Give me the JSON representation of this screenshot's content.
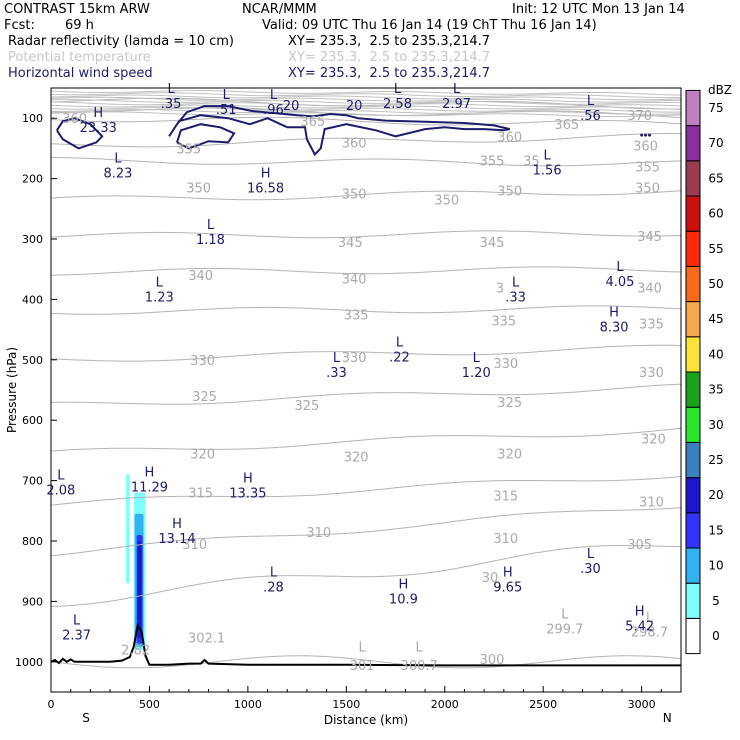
{
  "header": {
    "title_left": "CONTRAST 15km ARW",
    "title_center": "NCAR/MMM",
    "init": "Init: 12 UTC Mon 13 Jan 14",
    "fcst_label": "Fcst:",
    "fcst_value": "69 h",
    "valid": "Valid: 09 UTC Thu 16 Jan 14 (19 ChT Thu 16 Jan 14)",
    "fields": [
      {
        "name": "Radar reflectivity (lamda = 10 cm)",
        "xy": "XY= 235.3,  2.5 to 235.3,214.7"
      },
      {
        "name": "Potential temperature",
        "xy": "XY= 235.3,  2.5 to 235.3,214.7"
      },
      {
        "name": "Horizontal wind speed",
        "xy": "XY= 235.3,  2.5 to 235.3,214.7"
      }
    ]
  },
  "colors": {
    "theta": "#b4b4b4",
    "wind": "#1c1c6e",
    "terrain": "#000000"
  },
  "chart_data": {
    "type": "cross-section",
    "xlabel": "Distance (km)",
    "ylabel": "Pressure (hPa)",
    "xlim": [
      0,
      3200
    ],
    "ylim": [
      1050,
      50
    ],
    "x_ticks": [
      0,
      500,
      1000,
      1500,
      2000,
      2500,
      3000
    ],
    "y_ticks": [
      100,
      200,
      300,
      400,
      500,
      600,
      700,
      800,
      900,
      1000
    ],
    "x_end_labels": {
      "left": "S",
      "right": "N"
    },
    "colorbar": {
      "unit": "dBZ",
      "levels": [
        0,
        5,
        10,
        15,
        20,
        25,
        30,
        35,
        40,
        45,
        50,
        55,
        60,
        65,
        70,
        75
      ],
      "colors": [
        "#ffffff",
        "#7fffff",
        "#33b2f2",
        "#3333ff",
        "#1a1acc",
        "#3b80bf",
        "#29e629",
        "#1aa31a",
        "#fbe339",
        "#f4a94c",
        "#fa6a1a",
        "#ff2a0a",
        "#cc0f0f",
        "#9b3c4f",
        "#8a2fa0",
        "#c080c0"
      ]
    },
    "reflectivity_cells": [
      {
        "x0": 380,
        "x1": 400,
        "p_top": 690,
        "p_bot": 870,
        "dbz": 5
      },
      {
        "x0": 420,
        "x1": 480,
        "p_top": 720,
        "p_bot": 980,
        "dbz": 5
      },
      {
        "x0": 425,
        "x1": 470,
        "p_top": 755,
        "p_bot": 975,
        "dbz": 10
      },
      {
        "x0": 435,
        "x1": 465,
        "p_top": 790,
        "p_bot": 970,
        "dbz": 15
      },
      {
        "x0": 440,
        "x1": 460,
        "p_top": 800,
        "p_bot": 960,
        "dbz": 20
      }
    ],
    "theta_levels": [
      {
        "value": 300,
        "p_left": 1000,
        "p_right": 1000
      },
      {
        "value": 305,
        "p_left": 900,
        "p_right": 805
      },
      {
        "value": 310,
        "p_left": 820,
        "p_right": 740
      },
      {
        "value": 315,
        "p_left": 740,
        "p_right": 690
      },
      {
        "value": 320,
        "p_left": 655,
        "p_right": 615
      },
      {
        "value": 325,
        "p_left": 575,
        "p_right": 545
      },
      {
        "value": 330,
        "p_left": 500,
        "p_right": 480
      },
      {
        "value": 335,
        "p_left": 420,
        "p_right": 415
      },
      {
        "value": 340,
        "p_left": 355,
        "p_right": 350
      },
      {
        "value": 345,
        "p_left": 295,
        "p_right": 290
      },
      {
        "value": 350,
        "p_left": 235,
        "p_right": 220
      },
      {
        "value": 355,
        "p_left": 170,
        "p_right": 175
      },
      {
        "value": 360,
        "p_left": 145,
        "p_right": 130
      },
      {
        "value": 365,
        "p_left": 100,
        "p_right": 110
      },
      {
        "value": 370,
        "p_left": 85,
        "p_right": 95
      },
      {
        "value": 375,
        "p_left": 70,
        "p_right": 80
      }
    ],
    "theta_labels": [
      {
        "text": "360",
        "x": 120,
        "p": 100
      },
      {
        "text": "355",
        "x": 700,
        "p": 150
      },
      {
        "text": "365",
        "x": 1330,
        "p": 105
      },
      {
        "text": "360",
        "x": 1540,
        "p": 140
      },
      {
        "text": "360",
        "x": 2330,
        "p": 130
      },
      {
        "text": "365",
        "x": 2620,
        "p": 110
      },
      {
        "text": "370",
        "x": 2990,
        "p": 95
      },
      {
        "text": "360",
        "x": 3020,
        "p": 145
      },
      {
        "text": "355",
        "x": 2240,
        "p": 170
      },
      {
        "text": "35",
        "x": 2440,
        "p": 170
      },
      {
        "text": "355",
        "x": 3030,
        "p": 180
      },
      {
        "text": "350",
        "x": 750,
        "p": 215
      },
      {
        "text": "350",
        "x": 1540,
        "p": 225
      },
      {
        "text": "350",
        "x": 2010,
        "p": 235
      },
      {
        "text": "350",
        "x": 2330,
        "p": 220
      },
      {
        "text": "350",
        "x": 3030,
        "p": 215
      },
      {
        "text": "345",
        "x": 1520,
        "p": 305
      },
      {
        "text": "345",
        "x": 2240,
        "p": 305
      },
      {
        "text": "345",
        "x": 3040,
        "p": 295
      },
      {
        "text": "340",
        "x": 760,
        "p": 360
      },
      {
        "text": "340",
        "x": 1540,
        "p": 365
      },
      {
        "text": "3",
        "x": 2280,
        "p": 380
      },
      {
        "text": "340",
        "x": 3040,
        "p": 380
      },
      {
        "text": "335",
        "x": 1550,
        "p": 425
      },
      {
        "text": "335",
        "x": 2300,
        "p": 435
      },
      {
        "text": "335",
        "x": 3050,
        "p": 440
      },
      {
        "text": "330",
        "x": 770,
        "p": 500
      },
      {
        "text": "330",
        "x": 1540,
        "p": 495
      },
      {
        "text": "330",
        "x": 2310,
        "p": 505
      },
      {
        "text": "330",
        "x": 3050,
        "p": 520
      },
      {
        "text": "325",
        "x": 780,
        "p": 560
      },
      {
        "text": "325",
        "x": 1300,
        "p": 575
      },
      {
        "text": "325",
        "x": 2330,
        "p": 570
      },
      {
        "text": "320",
        "x": 770,
        "p": 655
      },
      {
        "text": "320",
        "x": 1550,
        "p": 660
      },
      {
        "text": "320",
        "x": 2330,
        "p": 655
      },
      {
        "text": "320",
        "x": 3060,
        "p": 630
      },
      {
        "text": "315",
        "x": 760,
        "p": 720
      },
      {
        "text": "315",
        "x": 2310,
        "p": 725
      },
      {
        "text": "310",
        "x": 1360,
        "p": 785
      },
      {
        "text": "310",
        "x": 730,
        "p": 805
      },
      {
        "text": "310",
        "x": 2310,
        "p": 795
      },
      {
        "text": "310",
        "x": 3050,
        "p": 735
      },
      {
        "text": "305",
        "x": 2990,
        "p": 805
      },
      {
        "text": "30",
        "x": 2230,
        "p": 860
      },
      {
        "text": "302.1",
        "x": 790,
        "p": 960
      },
      {
        "text": "299.7",
        "x": 2610,
        "p": 945
      },
      {
        "text": "298.7",
        "x": 3040,
        "p": 950
      },
      {
        "text": "301",
        "x": 1580,
        "p": 1005
      },
      {
        "text": "300.7",
        "x": 1870,
        "p": 1005
      },
      {
        "text": "300",
        "x": 2240,
        "p": 995
      },
      {
        "text": "L",
        "x": 1580,
        "p": 975
      },
      {
        "text": "L",
        "x": 1870,
        "p": 975
      },
      {
        "text": "L",
        "x": 2610,
        "p": 920
      },
      {
        "text": "L",
        "x": 3040,
        "p": 925
      },
      {
        "text": "2.82",
        "x": 430,
        "p": 980
      }
    ],
    "wind_labels": [
      {
        "mark": "L",
        "value": ".35",
        "x": 610,
        "p": 65
      },
      {
        "mark": "L",
        "value": ".51",
        "x": 890,
        "p": 75
      },
      {
        "mark": "L",
        "value": ".96",
        "x": 1130,
        "p": 75
      },
      {
        "mark": "L",
        "value": "2.58",
        "x": 1760,
        "p": 65
      },
      {
        "mark": "L",
        "value": "2.97",
        "x": 2060,
        "p": 65
      },
      {
        "mark": "L",
        "value": ".56",
        "x": 2740,
        "p": 85
      },
      {
        "mark": "H",
        "value": "23.33",
        "x": 240,
        "p": 105
      },
      {
        "mark": "L",
        "value": "8.23",
        "x": 340,
        "p": 180
      },
      {
        "mark": "H",
        "value": "16.58",
        "x": 1090,
        "p": 205
      },
      {
        "mark": "L",
        "value": "1.56",
        "x": 2520,
        "p": 175
      },
      {
        "mark": "L",
        "value": "1.18",
        "x": 810,
        "p": 290
      },
      {
        "mark": "L",
        "value": "1.23",
        "x": 550,
        "p": 385
      },
      {
        "mark": "L",
        "value": ".33",
        "x": 2360,
        "p": 385
      },
      {
        "mark": "L",
        "value": "4.05",
        "x": 2890,
        "p": 360
      },
      {
        "mark": "H",
        "value": "8.30",
        "x": 2860,
        "p": 435
      },
      {
        "mark": "L",
        "value": ".22",
        "x": 1770,
        "p": 485
      },
      {
        "mark": "L",
        "value": ".33",
        "x": 1450,
        "p": 510
      },
      {
        "mark": "L",
        "value": "1.20",
        "x": 2160,
        "p": 510
      },
      {
        "mark": "L",
        "value": "2.08",
        "x": 50,
        "p": 705
      },
      {
        "mark": "H",
        "value": "11.29",
        "x": 500,
        "p": 700
      },
      {
        "mark": "H",
        "value": "13.35",
        "x": 1000,
        "p": 710
      },
      {
        "mark": "H",
        "value": "13.14",
        "x": 640,
        "p": 785
      },
      {
        "mark": "L",
        "value": ".28",
        "x": 1130,
        "p": 865
      },
      {
        "mark": "H",
        "value": "10.9",
        "x": 1790,
        "p": 885
      },
      {
        "mark": "H",
        "value": "9.65",
        "x": 2320,
        "p": 865
      },
      {
        "mark": "L",
        "value": ".30",
        "x": 2740,
        "p": 835
      },
      {
        "mark": "L",
        "value": "2.37",
        "x": 130,
        "p": 945
      },
      {
        "mark": "H",
        "value": "5.42",
        "x": 2990,
        "p": 930
      }
    ],
    "wind_contour_20": {
      "label": "20",
      "polylines": [
        [
          [
            30,
            120
          ],
          [
            60,
            105
          ],
          [
            120,
            100
          ],
          [
            200,
            110
          ],
          [
            260,
            130
          ],
          [
            230,
            140
          ],
          [
            140,
            150
          ],
          [
            60,
            135
          ],
          [
            30,
            120
          ]
        ],
        [
          [
            600,
            130
          ],
          [
            650,
            105
          ],
          [
            760,
            95
          ],
          [
            900,
            100
          ],
          [
            1010,
            110
          ],
          [
            1100,
            100
          ],
          [
            1200,
            115
          ],
          [
            1290,
            115
          ],
          [
            1300,
            135
          ],
          [
            1340,
            160
          ],
          [
            1370,
            150
          ],
          [
            1390,
            118
          ],
          [
            1500,
            110
          ],
          [
            1650,
            120
          ],
          [
            1750,
            130
          ],
          [
            1900,
            118
          ],
          [
            2000,
            115
          ],
          [
            2100,
            118
          ],
          [
            2200,
            118
          ],
          [
            2300,
            120
          ],
          [
            2330,
            118
          ],
          [
            2250,
            112
          ],
          [
            2100,
            108
          ],
          [
            1900,
            106
          ],
          [
            1700,
            104
          ],
          [
            1560,
            100
          ],
          [
            1500,
            95
          ],
          [
            1420,
            93
          ],
          [
            1330,
            97
          ],
          [
            1250,
            95
          ],
          [
            1150,
            92
          ],
          [
            1020,
            88
          ],
          [
            900,
            80
          ],
          [
            780,
            80
          ],
          [
            690,
            90
          ],
          [
            640,
            110
          ],
          [
            600,
            130
          ]
        ],
        [
          [
            640,
            140
          ],
          [
            660,
            120
          ],
          [
            760,
            110
          ],
          [
            860,
            115
          ],
          [
            930,
            125
          ],
          [
            900,
            140
          ],
          [
            800,
            138
          ],
          [
            700,
            150
          ],
          [
            640,
            140
          ]
        ]
      ],
      "label_positions": [
        {
          "text": "20",
          "x": 1220,
          "p": 78
        },
        {
          "text": "20",
          "x": 1540,
          "p": 78
        }
      ]
    },
    "small_features": [
      [
        3000,
        128
      ],
      [
        3020,
        128
      ],
      [
        3040,
        128
      ]
    ],
    "terrain_pressure": [
      [
        0,
        1000
      ],
      [
        20,
        997
      ],
      [
        40,
        1002
      ],
      [
        60,
        995
      ],
      [
        80,
        1000
      ],
      [
        100,
        996
      ],
      [
        120,
        1000
      ],
      [
        200,
        1000
      ],
      [
        300,
        1000
      ],
      [
        360,
        998
      ],
      [
        400,
        992
      ],
      [
        420,
        975
      ],
      [
        440,
        940
      ],
      [
        460,
        950
      ],
      [
        480,
        990
      ],
      [
        500,
        1005
      ],
      [
        600,
        1005
      ],
      [
        700,
        1003
      ],
      [
        760,
        1003
      ],
      [
        780,
        997
      ],
      [
        800,
        1003
      ],
      [
        1000,
        1005
      ],
      [
        1500,
        1005
      ],
      [
        2000,
        1006
      ],
      [
        2500,
        1006
      ],
      [
        3000,
        1006
      ],
      [
        3200,
        1006
      ]
    ]
  }
}
